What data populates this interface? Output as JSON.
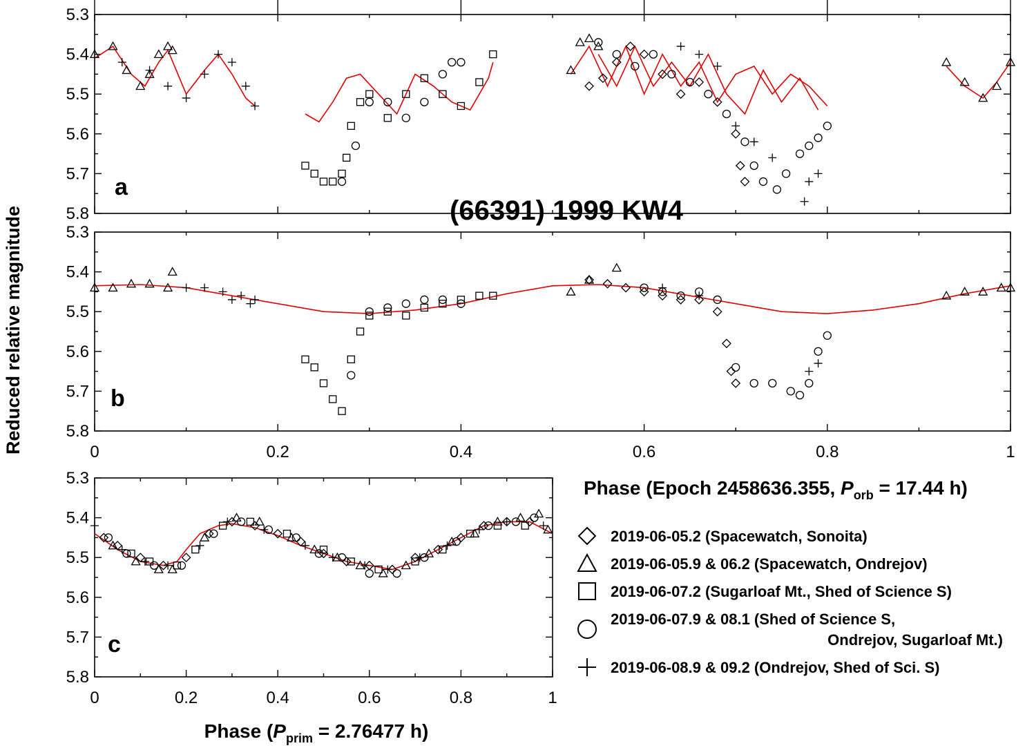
{
  "figure": {
    "title": "(66391) 1999 KW4",
    "ylabel": "Reduced relative magnitude",
    "xlabel_ab": {
      "pre": "Phase (Epoch 2458636.355, ",
      "sym": "P",
      "sub": "orb",
      "post": " = 17.44 h)"
    },
    "xlabel_c": {
      "pre": "Phase (",
      "sym": "P",
      "sub": "prim",
      "post": " = 2.76477 h)"
    }
  },
  "legend": {
    "placement": "bottom-right",
    "items": [
      {
        "marker": "diamond",
        "lines": [
          "2019-06-05.2 (Spacewatch, Sonoita)"
        ]
      },
      {
        "marker": "triangle",
        "lines": [
          "2019-06-05.9 & 06.2 (Spacewatch, Ondrejov)"
        ]
      },
      {
        "marker": "square",
        "lines": [
          "2019-06-07.2 (Sugarloaf Mt., Shed of Science S)"
        ]
      },
      {
        "marker": "circle",
        "lines": [
          "2019-06-07.9 & 08.1 (Shed of Science S,",
          "Ondrejov, Sugarloaf Mt.)"
        ]
      },
      {
        "marker": "plus",
        "lines": [
          "2019-06-08.9 & 09.2 (Ondrejov, Shed of Sci. S)"
        ]
      }
    ]
  },
  "colors": {
    "fit": "#e00000",
    "points": "#000000",
    "axes": "#000000"
  },
  "chart_data": [
    {
      "panel": "a",
      "type": "scatter",
      "xlim": [
        0,
        1
      ],
      "ylim": [
        5.3,
        5.8
      ],
      "y_inverted": true,
      "xticks": [
        "0",
        "0.2",
        "0.4",
        "0.6",
        "0.8",
        "1"
      ],
      "yticks": [
        "5.3",
        "5.4",
        "5.5",
        "5.6",
        "5.7",
        "5.8"
      ],
      "series": [
        {
          "marker": "diamond",
          "name": "2019-06-05.2 (Spacewatch, Sonoita)",
          "x": [
            0.54,
            0.555,
            0.57,
            0.585,
            0.6,
            0.62,
            0.64,
            0.66,
            0.68,
            0.7,
            0.705,
            0.71
          ],
          "y": [
            5.48,
            5.46,
            5.42,
            5.38,
            5.4,
            5.45,
            5.5,
            5.47,
            5.52,
            5.6,
            5.68,
            5.72
          ]
        },
        {
          "marker": "triangle",
          "name": "2019-06-05.9 & 06.2 (Spacewatch, Ondrejov)",
          "x": [
            0,
            0.02,
            0.035,
            0.05,
            0.06,
            0.07,
            0.08,
            0.085,
            0.52,
            0.53,
            0.54,
            0.55,
            0.93,
            0.95,
            0.97,
            0.985,
            1
          ],
          "y": [
            5.4,
            5.38,
            5.44,
            5.48,
            5.45,
            5.4,
            5.38,
            5.39,
            5.44,
            5.37,
            5.36,
            5.38,
            5.42,
            5.47,
            5.51,
            5.48,
            5.42
          ]
        },
        {
          "marker": "square",
          "name": "2019-06-07.2 (Sugarloaf Mt., Shed of Science S)",
          "x": [
            0.23,
            0.24,
            0.25,
            0.26,
            0.27,
            0.275,
            0.28,
            0.29,
            0.3,
            0.32,
            0.34,
            0.36,
            0.38,
            0.4,
            0.42,
            0.435
          ],
          "y": [
            5.68,
            5.7,
            5.72,
            5.72,
            5.7,
            5.66,
            5.58,
            5.52,
            5.5,
            5.56,
            5.5,
            5.46,
            5.5,
            5.53,
            5.47,
            5.4
          ]
        },
        {
          "marker": "circle",
          "name": "2019-06-07.9 & 08.1 (Shed of Science S, Ondrejov, Sugarloaf Mt.)",
          "x": [
            0.27,
            0.285,
            0.3,
            0.32,
            0.34,
            0.36,
            0.38,
            0.39,
            0.4,
            0.55,
            0.57,
            0.59,
            0.61,
            0.63,
            0.65,
            0.67,
            0.69,
            0.71,
            0.72,
            0.73,
            0.745,
            0.755,
            0.77,
            0.78,
            0.79,
            0.8
          ],
          "y": [
            5.72,
            5.63,
            5.52,
            5.52,
            5.56,
            5.52,
            5.45,
            5.42,
            5.42,
            5.37,
            5.4,
            5.43,
            5.4,
            5.45,
            5.47,
            5.5,
            5.55,
            5.62,
            5.68,
            5.72,
            5.74,
            5.7,
            5.65,
            5.63,
            5.61,
            5.58
          ]
        },
        {
          "marker": "plus",
          "name": "2019-06-08.9 & 09.2 (Ondrejov, Shed of Sci. S)",
          "x": [
            0.03,
            0.06,
            0.08,
            0.1,
            0.12,
            0.135,
            0.15,
            0.165,
            0.175,
            0.64,
            0.66,
            0.68,
            0.7,
            0.72,
            0.74,
            0.775,
            0.78,
            0.79
          ],
          "y": [
            5.42,
            5.44,
            5.48,
            5.51,
            5.45,
            5.4,
            5.42,
            5.48,
            5.53,
            5.38,
            5.4,
            5.43,
            5.58,
            5.62,
            5.66,
            5.77,
            5.72,
            5.7
          ]
        }
      ],
      "fits": [
        {
          "x": [
            0,
            0.02,
            0.04,
            0.055,
            0.07,
            0.08,
            0.1,
            0.12,
            0.135,
            0.15,
            0.165,
            0.175
          ],
          "y": [
            5.41,
            5.38,
            5.45,
            5.48,
            5.42,
            5.39,
            5.5,
            5.44,
            5.4,
            5.45,
            5.51,
            5.53
          ]
        },
        {
          "x": [
            0.23,
            0.245,
            0.26,
            0.275,
            0.29,
            0.31,
            0.33,
            0.35,
            0.37,
            0.39,
            0.41,
            0.43,
            0.435
          ],
          "y": [
            5.55,
            5.57,
            5.52,
            5.46,
            5.45,
            5.5,
            5.55,
            5.45,
            5.48,
            5.52,
            5.54,
            5.46,
            5.42
          ]
        },
        {
          "x": [
            0.52,
            0.54,
            0.56,
            0.58,
            0.6,
            0.62,
            0.64,
            0.66,
            0.68,
            0.7,
            0.72,
            0.74,
            0.76,
            0.78,
            0.8
          ],
          "y": [
            5.45,
            5.38,
            5.48,
            5.38,
            5.5,
            5.4,
            5.48,
            5.42,
            5.52,
            5.45,
            5.43,
            5.5,
            5.45,
            5.48,
            5.53
          ]
        },
        {
          "x": [
            0.55,
            0.57,
            0.59,
            0.61,
            0.63,
            0.65,
            0.67,
            0.69,
            0.71,
            0.73,
            0.75,
            0.77,
            0.79
          ],
          "y": [
            5.4,
            5.48,
            5.38,
            5.48,
            5.42,
            5.48,
            5.4,
            5.5,
            5.55,
            5.44,
            5.52,
            5.46,
            5.54
          ]
        },
        {
          "x": [
            0.93,
            0.95,
            0.97,
            0.985,
            1
          ],
          "y": [
            5.43,
            5.48,
            5.51,
            5.47,
            5.42
          ]
        }
      ]
    },
    {
      "panel": "b",
      "type": "scatter",
      "xlim": [
        0,
        1
      ],
      "ylim": [
        5.3,
        5.8
      ],
      "y_inverted": true,
      "xticks": [
        "0",
        "0.2",
        "0.4",
        "0.6",
        "0.8",
        "1"
      ],
      "yticks": [
        "5.3",
        "5.4",
        "5.5",
        "5.6",
        "5.7",
        "5.8"
      ],
      "series": [
        {
          "marker": "diamond",
          "name": "2019-06-05.2 (Spacewatch, Sonoita)",
          "x": [
            0.54,
            0.56,
            0.58,
            0.6,
            0.62,
            0.64,
            0.66,
            0.68,
            0.69,
            0.695,
            0.7
          ],
          "y": [
            5.42,
            5.43,
            5.44,
            5.45,
            5.46,
            5.47,
            5.47,
            5.5,
            5.58,
            5.65,
            5.68
          ]
        },
        {
          "marker": "triangle",
          "name": "2019-06-05.9 & 06.2 (Spacewatch, Ondrejov)",
          "x": [
            0,
            0.02,
            0.04,
            0.06,
            0.08,
            0.085,
            0.52,
            0.54,
            0.57,
            0.93,
            0.95,
            0.97,
            0.99,
            1
          ],
          "y": [
            5.44,
            5.44,
            5.43,
            5.43,
            5.44,
            5.4,
            5.45,
            5.42,
            5.39,
            5.46,
            5.45,
            5.45,
            5.44,
            5.44
          ]
        },
        {
          "marker": "square",
          "name": "2019-06-07.2 (Sugarloaf Mt., Shed of Science S)",
          "x": [
            0.23,
            0.24,
            0.25,
            0.26,
            0.27,
            0.28,
            0.29,
            0.3,
            0.32,
            0.34,
            0.36,
            0.38,
            0.4,
            0.42,
            0.435
          ],
          "y": [
            5.62,
            5.64,
            5.68,
            5.72,
            5.75,
            5.62,
            5.55,
            5.51,
            5.5,
            5.51,
            5.49,
            5.48,
            5.47,
            5.46,
            5.46
          ]
        },
        {
          "marker": "circle",
          "name": "2019-06-07.9 & 08.1 (Shed of Science S, Ondrejov, Sugarloaf Mt.)",
          "x": [
            0.28,
            0.3,
            0.32,
            0.34,
            0.36,
            0.38,
            0.4,
            0.6,
            0.62,
            0.64,
            0.66,
            0.68,
            0.7,
            0.72,
            0.74,
            0.76,
            0.77,
            0.78,
            0.79,
            0.8
          ],
          "y": [
            5.66,
            5.5,
            5.49,
            5.48,
            5.47,
            5.47,
            5.48,
            5.44,
            5.45,
            5.46,
            5.45,
            5.47,
            5.64,
            5.68,
            5.68,
            5.7,
            5.71,
            5.68,
            5.6,
            5.56
          ]
        },
        {
          "marker": "plus",
          "name": "2019-06-08.9 & 09.2 (Ondrejov, Shed of Sci. S)",
          "x": [
            0.1,
            0.12,
            0.14,
            0.15,
            0.16,
            0.17,
            0.175,
            0.62,
            0.66,
            0.78,
            0.79
          ],
          "y": [
            5.44,
            5.44,
            5.45,
            5.47,
            5.46,
            5.48,
            5.47,
            5.44,
            5.46,
            5.65,
            5.63
          ]
        }
      ],
      "fits": [
        {
          "x": [
            0,
            0.05,
            0.1,
            0.15,
            0.2,
            0.25,
            0.3,
            0.35,
            0.4,
            0.45,
            0.5,
            0.55,
            0.6,
            0.65,
            0.7,
            0.75,
            0.8,
            0.85,
            0.9,
            0.95,
            1
          ],
          "y": [
            5.435,
            5.432,
            5.44,
            5.46,
            5.48,
            5.5,
            5.505,
            5.496,
            5.48,
            5.455,
            5.435,
            5.432,
            5.44,
            5.46,
            5.48,
            5.5,
            5.505,
            5.496,
            5.48,
            5.455,
            5.435
          ]
        }
      ]
    },
    {
      "panel": "c",
      "type": "scatter",
      "xlim": [
        0,
        1
      ],
      "ylim": [
        5.3,
        5.8
      ],
      "y_inverted": true,
      "xticks": [
        "0",
        "0.2",
        "0.4",
        "0.6",
        "0.8",
        "1"
      ],
      "yticks": [
        "5.3",
        "5.4",
        "5.5",
        "5.6",
        "5.7",
        "5.8"
      ],
      "series": [
        {
          "marker": "diamond",
          "name": "2019-06-05.2 (Spacewatch, Sonoita)",
          "x": [
            0.02,
            0.05,
            0.1,
            0.15,
            0.2,
            0.25,
            0.3,
            0.35,
            0.4,
            0.45,
            0.5,
            0.55,
            0.6,
            0.65,
            0.7,
            0.75,
            0.8,
            0.85,
            0.9,
            0.95
          ],
          "y": [
            5.45,
            5.47,
            5.5,
            5.52,
            5.5,
            5.44,
            5.41,
            5.42,
            5.44,
            5.46,
            5.49,
            5.51,
            5.52,
            5.53,
            5.5,
            5.48,
            5.45,
            5.42,
            5.41,
            5.41
          ]
        },
        {
          "marker": "triangle",
          "name": "2019-06-05.9 & 06.2 (Spacewatch, Ondrejov)",
          "x": [
            0.04,
            0.09,
            0.14,
            0.17,
            0.24,
            0.31,
            0.36,
            0.43,
            0.48,
            0.53,
            0.58,
            0.63,
            0.68,
            0.73,
            0.78,
            0.83,
            0.88,
            0.93,
            0.97,
            0.99
          ],
          "y": [
            5.47,
            5.51,
            5.53,
            5.53,
            5.45,
            5.4,
            5.41,
            5.45,
            5.48,
            5.5,
            5.52,
            5.54,
            5.52,
            5.49,
            5.46,
            5.44,
            5.41,
            5.4,
            5.39,
            5.43
          ]
        },
        {
          "marker": "square",
          "name": "2019-06-07.2 (Sugarloaf Mt., Shed of Science S)",
          "x": [
            0.08,
            0.12,
            0.18,
            0.22,
            0.28,
            0.34,
            0.42,
            0.5,
            0.56,
            0.62,
            0.7,
            0.76,
            0.82,
            0.88,
            0.94
          ],
          "y": [
            5.49,
            5.51,
            5.52,
            5.48,
            5.42,
            5.41,
            5.44,
            5.48,
            5.51,
            5.53,
            5.51,
            5.48,
            5.44,
            5.42,
            5.42
          ]
        },
        {
          "marker": "circle",
          "name": "2019-06-07.9 & 08.1 (Shed of Science S, Ondrejov, Sugarloaf Mt.)",
          "x": [
            0.03,
            0.07,
            0.13,
            0.19,
            0.26,
            0.32,
            0.38,
            0.44,
            0.49,
            0.54,
            0.6,
            0.66,
            0.72,
            0.79,
            0.86,
            0.92,
            0.96
          ],
          "y": [
            5.45,
            5.49,
            5.52,
            5.52,
            5.44,
            5.41,
            5.43,
            5.45,
            5.49,
            5.5,
            5.54,
            5.54,
            5.5,
            5.46,
            5.42,
            5.41,
            5.4
          ]
        },
        {
          "marker": "plus",
          "name": "2019-06-08.9 & 09.2 (Ondrejov, Shed of Sci. S)",
          "x": [
            0,
            0.06,
            0.11,
            0.16,
            0.23,
            0.29,
            0.37,
            0.46,
            0.52,
            0.59,
            0.64,
            0.71,
            0.77,
            0.84,
            0.9,
            0.98
          ],
          "y": [
            5.42,
            5.48,
            5.51,
            5.52,
            5.47,
            5.41,
            5.43,
            5.47,
            5.5,
            5.52,
            5.53,
            5.5,
            5.47,
            5.43,
            5.41,
            5.42
          ]
        }
      ],
      "fits": [
        {
          "x": [
            0,
            0.05,
            0.1,
            0.15,
            0.18,
            0.2,
            0.23,
            0.27,
            0.3,
            0.35,
            0.4,
            0.45,
            0.5,
            0.55,
            0.6,
            0.65,
            0.7,
            0.75,
            0.8,
            0.85,
            0.9,
            0.95,
            1
          ],
          "y": [
            5.44,
            5.48,
            5.51,
            5.52,
            5.51,
            5.48,
            5.44,
            5.42,
            5.415,
            5.425,
            5.445,
            5.47,
            5.49,
            5.51,
            5.52,
            5.53,
            5.51,
            5.48,
            5.45,
            5.42,
            5.41,
            5.41,
            5.44
          ]
        }
      ]
    }
  ]
}
